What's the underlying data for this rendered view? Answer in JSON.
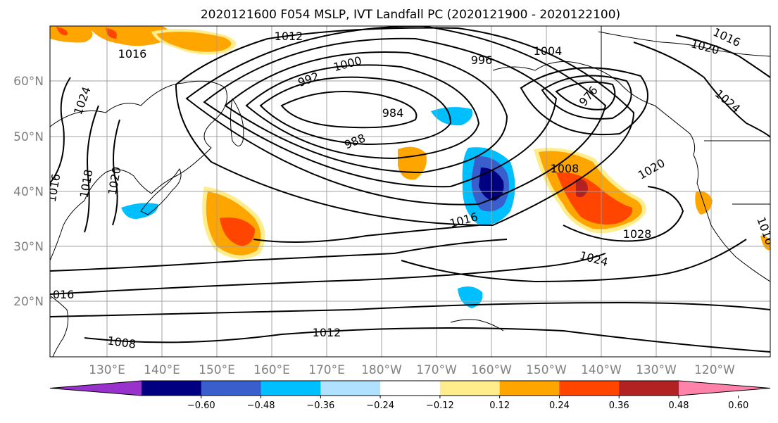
{
  "title": "2020121600 F054 MSLP, IVT Landfall PC (2020121900 - 2020122100)",
  "lat_labels": [
    "60°N",
    "50°N",
    "40°N",
    "30°N",
    "20°N"
  ],
  "lon_labels": [
    "130°E",
    "140°E",
    "150°E",
    "160°E",
    "170°E",
    "180°W",
    "170°W",
    "160°W",
    "150°W",
    "140°W",
    "130°W",
    "120°W"
  ],
  "colorbar": {
    "ticks": [
      "−0.60",
      "−0.48",
      "−0.36",
      "−0.24",
      "−0.12",
      "0.12",
      "0.24",
      "0.36",
      "0.48",
      "0.60"
    ],
    "colors": [
      "#9932CC",
      "#000080",
      "#3A5FCD",
      "#00BFFF",
      "#B0E2FF",
      "#FFFFFF",
      "#FFEC8B",
      "#FFA500",
      "#FF4500",
      "#B22222",
      "#FF82AB"
    ]
  },
  "contour_labels": [
    "1012",
    "1016",
    "1004",
    "996",
    "992",
    "1000",
    "1016",
    "1020",
    "1024",
    "984",
    "988",
    "1008",
    "1020",
    "1016",
    "1028",
    "1024",
    "1016",
    "1012",
    "1008",
    "976",
    "1024",
    "1016",
    "1020",
    "1016",
    "1018"
  ]
}
